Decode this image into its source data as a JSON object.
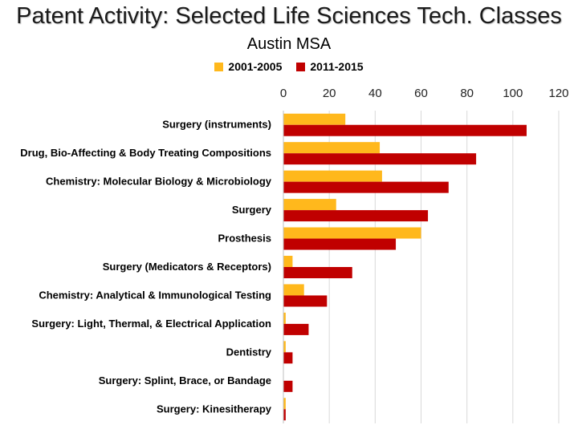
{
  "chart_data": {
    "type": "bar",
    "orientation": "horizontal",
    "title": "Patent Activity: Selected Life Sciences Tech. Classes",
    "subtitle": "Austin MSA",
    "categories": [
      "Surgery (instruments)",
      "Drug, Bio-Affecting & Body Treating Compositions",
      "Chemistry: Molecular Biology & Microbiology",
      "Surgery",
      "Prosthesis",
      "Surgery (Medicators & Receptors)",
      "Chemistry: Analytical & Immunological Testing",
      "Surgery: Light, Thermal, & Electrical Application",
      "Dentistry",
      "Surgery: Splint, Brace, or Bandage",
      "Surgery: Kinesitherapy"
    ],
    "series": [
      {
        "name": "2001-2005",
        "color": "#FFB81C",
        "values": [
          27,
          42,
          43,
          23,
          60,
          4,
          9,
          1,
          1,
          0,
          1
        ]
      },
      {
        "name": "2011-2015",
        "color": "#C00000",
        "values": [
          106,
          84,
          72,
          63,
          49,
          30,
          19,
          11,
          4,
          4,
          1
        ]
      }
    ],
    "xlim": [
      0,
      120
    ],
    "xticks": [
      "0",
      "20",
      "40",
      "60",
      "80",
      "100",
      "120"
    ],
    "xaxis_position": "top",
    "grid": true,
    "legend_position": "top"
  }
}
